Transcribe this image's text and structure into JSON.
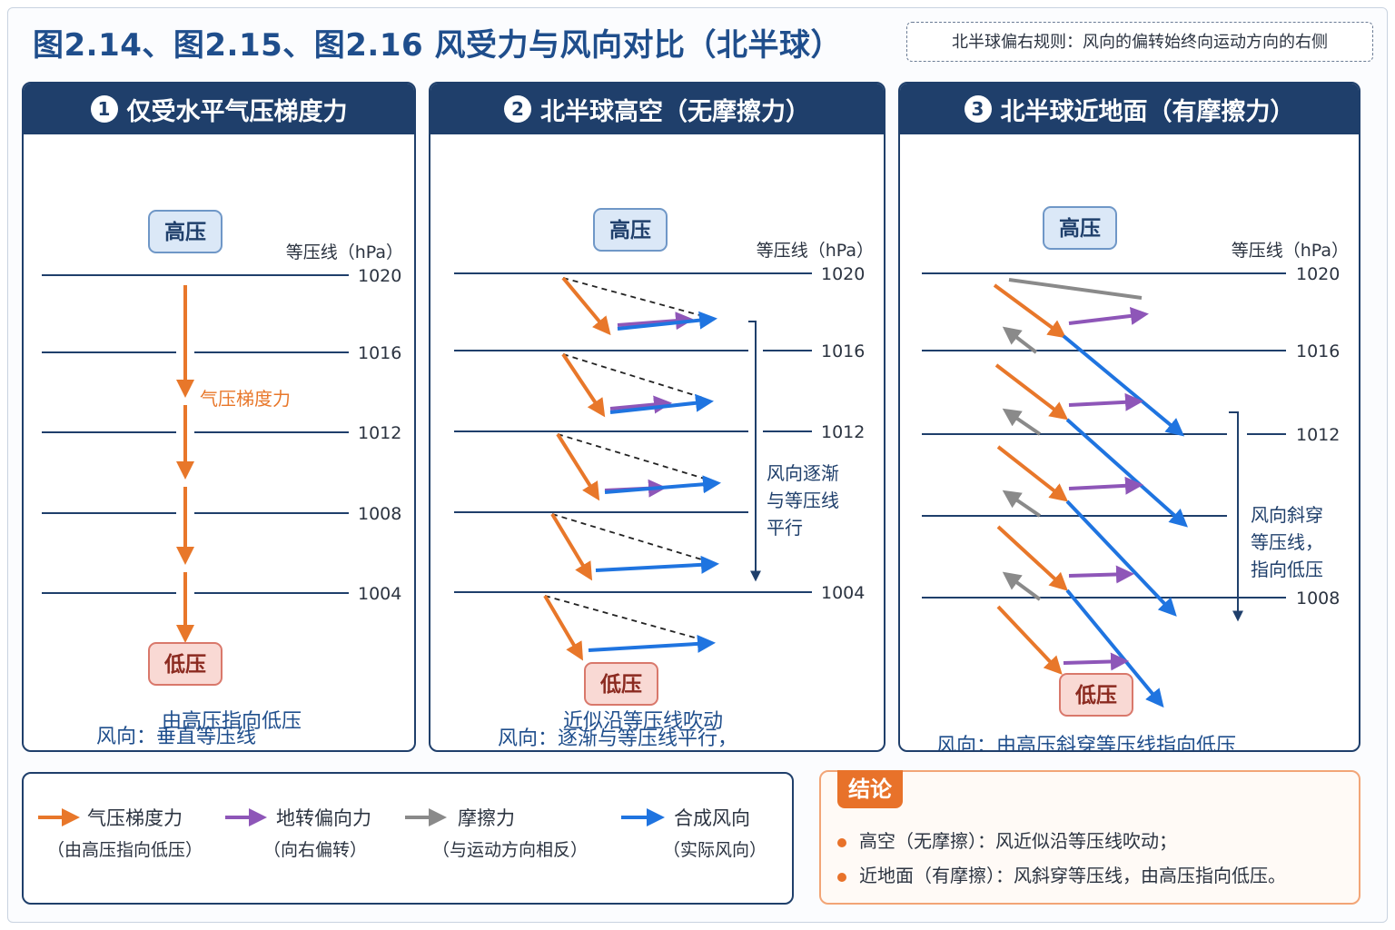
{
  "title": "图2.14、图2.15、图2.16  风受力与风向对比（北半球）",
  "rule_note": "北半球偏右规则：风向的偏转始终向运动方向的右侧",
  "colors": {
    "pgf": "#e8772a",
    "coriolis": "#8e56b8",
    "friction": "#8a8a8a",
    "wind": "#1f74e0",
    "navy": "#1f3f6b"
  },
  "panels": [
    {
      "num": "1",
      "title": "仅受水平气压梯度力",
      "isobar_header": "等压线（hPa）",
      "isobars": [
        "1020",
        "1016",
        "1012",
        "1008",
        "1004"
      ],
      "high": "高压",
      "low": "低压",
      "pgf_label": "气压梯度力",
      "wind_line1": "风向：垂直等压线",
      "wind_line2": "由高压指向低压"
    },
    {
      "num": "2",
      "title": "北半球高空（无摩擦力）",
      "isobar_header": "等压线（hPa）",
      "isobars": [
        "1020",
        "1016",
        "1012",
        "1004"
      ],
      "high": "高压",
      "low": "低压",
      "side_note": [
        "风向逐渐",
        "与等压线",
        "平行"
      ],
      "wind_line1": "风向：逐渐与等压线平行，",
      "wind_line2": "近似沿等压线吹动"
    },
    {
      "num": "3",
      "title": "北半球近地面（有摩擦力）",
      "isobar_header": "等压线（hPa）",
      "isobars": [
        "1020",
        "1016",
        "1012",
        "1008"
      ],
      "high": "高压",
      "low": "低压",
      "side_note": [
        "风向斜穿",
        "等压线，",
        "指向低压"
      ],
      "wind_line1": "风向：由高压斜穿等压线指向低压"
    }
  ],
  "legend": [
    {
      "name": "气压梯度力",
      "sub": "（由高压指向低压）",
      "icon": "orange-arrow"
    },
    {
      "name": "地转偏向力",
      "sub": "（向右偏转）",
      "icon": "purple-arrow"
    },
    {
      "name": "摩擦力",
      "sub": "（与运动方向相反）",
      "icon": "gray-arrow"
    },
    {
      "name": "合成风向",
      "sub": "（实际风向）",
      "icon": "blue-arrow"
    }
  ],
  "conclusion": {
    "badge": "结论",
    "items": [
      "高空（无摩擦）：风近似沿等压线吹动；",
      "近地面（有摩擦）：风斜穿等压线，由高压指向低压。"
    ]
  }
}
